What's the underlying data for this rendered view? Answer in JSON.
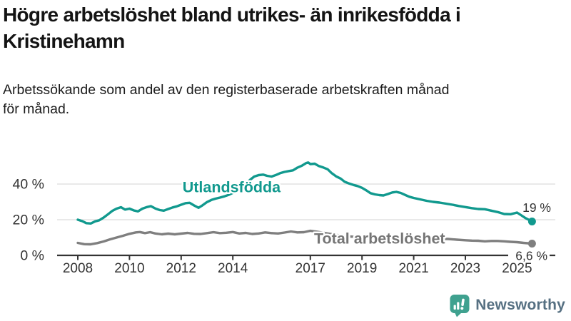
{
  "header": {
    "title_lines": [
      "Högre arbetslöshet bland utrikes- än inrikesfödda i",
      "Kristinehamn"
    ],
    "subtitle_lines": [
      "Arbetssökande som andel av den registerbaserade arbetskraften månad",
      "för månad."
    ]
  },
  "chart_data": {
    "type": "line",
    "title": "Högre arbetslöshet bland utrikes- än inrikesfödda i Kristinehamn",
    "subtitle": "Arbetssökande som andel av den registerbaserade arbetskraften månad för månad.",
    "unit": "%",
    "xlim": [
      2008,
      2025.58
    ],
    "ylim": [
      0,
      56
    ],
    "grid": "horizontal",
    "legend_position": "inline-labels",
    "x_ticks": [
      2008,
      2010,
      2012,
      2014,
      2017,
      2019,
      2021,
      2023,
      2025
    ],
    "y_ticks": [
      {
        "value": 0,
        "label": "0 %"
      },
      {
        "value": 20,
        "label": "20 %"
      },
      {
        "value": 40,
        "label": "40 %"
      }
    ],
    "axis_color": "#333333",
    "gridline_color": "#dcdcdc",
    "tick_label_color": "#333333",
    "series": [
      {
        "name": "Utlandsfödda",
        "color": "#11998e",
        "end_label": "19 %",
        "end_value": 19,
        "label_at": [
          2013.95,
          38.4
        ],
        "points": [
          [
            2008.0,
            20.0
          ],
          [
            2008.17,
            19.2
          ],
          [
            2008.33,
            18.1
          ],
          [
            2008.5,
            17.9
          ],
          [
            2008.67,
            19.1
          ],
          [
            2008.83,
            19.7
          ],
          [
            2009.0,
            21.2
          ],
          [
            2009.17,
            23.1
          ],
          [
            2009.33,
            24.9
          ],
          [
            2009.5,
            26.2
          ],
          [
            2009.67,
            27.0
          ],
          [
            2009.83,
            25.7
          ],
          [
            2010.0,
            26.2
          ],
          [
            2010.17,
            25.2
          ],
          [
            2010.33,
            24.7
          ],
          [
            2010.5,
            26.2
          ],
          [
            2010.67,
            27.1
          ],
          [
            2010.83,
            27.6
          ],
          [
            2011.0,
            26.3
          ],
          [
            2011.17,
            25.4
          ],
          [
            2011.33,
            25.1
          ],
          [
            2011.5,
            26.0
          ],
          [
            2011.67,
            26.9
          ],
          [
            2011.83,
            27.5
          ],
          [
            2012.0,
            28.4
          ],
          [
            2012.17,
            29.3
          ],
          [
            2012.33,
            29.5
          ],
          [
            2012.5,
            28.0
          ],
          [
            2012.67,
            26.7
          ],
          [
            2012.83,
            28.1
          ],
          [
            2013.0,
            29.9
          ],
          [
            2013.17,
            31.1
          ],
          [
            2013.33,
            31.8
          ],
          [
            2013.5,
            32.4
          ],
          [
            2013.67,
            33.1
          ],
          [
            2013.83,
            33.9
          ],
          [
            2014.0,
            35.1
          ],
          [
            2014.17,
            36.6
          ],
          [
            2014.33,
            38.2
          ],
          [
            2014.5,
            40.1
          ],
          [
            2014.67,
            42.4
          ],
          [
            2014.83,
            44.2
          ],
          [
            2015.0,
            45.0
          ],
          [
            2015.17,
            45.3
          ],
          [
            2015.33,
            44.6
          ],
          [
            2015.5,
            44.2
          ],
          [
            2015.67,
            45.1
          ],
          [
            2015.83,
            46.1
          ],
          [
            2016.0,
            46.8
          ],
          [
            2016.17,
            47.3
          ],
          [
            2016.33,
            47.7
          ],
          [
            2016.5,
            49.2
          ],
          [
            2016.67,
            50.3
          ],
          [
            2016.83,
            51.7
          ],
          [
            2016.92,
            52.1
          ],
          [
            2017.0,
            51.2
          ],
          [
            2017.17,
            51.4
          ],
          [
            2017.33,
            50.1
          ],
          [
            2017.5,
            49.3
          ],
          [
            2017.67,
            48.3
          ],
          [
            2017.83,
            46.1
          ],
          [
            2018.0,
            44.3
          ],
          [
            2018.17,
            43.1
          ],
          [
            2018.33,
            41.3
          ],
          [
            2018.5,
            40.3
          ],
          [
            2018.67,
            39.5
          ],
          [
            2018.83,
            38.9
          ],
          [
            2019.0,
            37.9
          ],
          [
            2019.17,
            36.4
          ],
          [
            2019.33,
            34.9
          ],
          [
            2019.5,
            34.2
          ],
          [
            2019.67,
            33.8
          ],
          [
            2019.83,
            33.6
          ],
          [
            2020.0,
            34.4
          ],
          [
            2020.17,
            35.3
          ],
          [
            2020.33,
            35.6
          ],
          [
            2020.5,
            35.0
          ],
          [
            2020.67,
            33.9
          ],
          [
            2020.83,
            32.9
          ],
          [
            2021.0,
            32.2
          ],
          [
            2021.25,
            31.4
          ],
          [
            2021.5,
            30.6
          ],
          [
            2021.75,
            30.0
          ],
          [
            2022.0,
            29.6
          ],
          [
            2022.25,
            29.0
          ],
          [
            2022.5,
            28.4
          ],
          [
            2022.75,
            27.7
          ],
          [
            2023.0,
            27.1
          ],
          [
            2023.25,
            26.5
          ],
          [
            2023.5,
            26.0
          ],
          [
            2023.75,
            25.9
          ],
          [
            2024.0,
            25.1
          ],
          [
            2024.25,
            24.3
          ],
          [
            2024.5,
            23.2
          ],
          [
            2024.75,
            23.1
          ],
          [
            2025.0,
            24.0
          ],
          [
            2025.17,
            22.4
          ],
          [
            2025.33,
            20.9
          ],
          [
            2025.58,
            19.0
          ]
        ]
      },
      {
        "name": "Total arbetslöshet",
        "color": "#7f7f7f",
        "end_label": "6,6 %",
        "end_value": 6.6,
        "label_at": [
          2019.68,
          9.6
        ],
        "points": [
          [
            2008.0,
            7.0
          ],
          [
            2008.25,
            6.3
          ],
          [
            2008.5,
            6.2
          ],
          [
            2008.75,
            6.9
          ],
          [
            2009.0,
            7.8
          ],
          [
            2009.25,
            9.0
          ],
          [
            2009.5,
            10.0
          ],
          [
            2009.75,
            11.0
          ],
          [
            2010.0,
            12.1
          ],
          [
            2010.25,
            12.9
          ],
          [
            2010.4,
            13.1
          ],
          [
            2010.6,
            12.5
          ],
          [
            2010.8,
            13.0
          ],
          [
            2011.0,
            12.3
          ],
          [
            2011.25,
            11.8
          ],
          [
            2011.5,
            12.2
          ],
          [
            2011.75,
            11.8
          ],
          [
            2012.0,
            12.2
          ],
          [
            2012.25,
            12.6
          ],
          [
            2012.5,
            12.1
          ],
          [
            2012.75,
            12.0
          ],
          [
            2013.0,
            12.5
          ],
          [
            2013.25,
            13.0
          ],
          [
            2013.5,
            12.5
          ],
          [
            2013.75,
            12.7
          ],
          [
            2014.0,
            13.1
          ],
          [
            2014.25,
            12.3
          ],
          [
            2014.5,
            12.6
          ],
          [
            2014.75,
            12.0
          ],
          [
            2015.0,
            12.3
          ],
          [
            2015.25,
            12.9
          ],
          [
            2015.5,
            12.5
          ],
          [
            2015.75,
            12.3
          ],
          [
            2016.0,
            12.8
          ],
          [
            2016.25,
            13.4
          ],
          [
            2016.5,
            12.9
          ],
          [
            2016.75,
            13.0
          ],
          [
            2017.0,
            13.8
          ],
          [
            2017.25,
            13.3
          ],
          [
            2017.5,
            12.7
          ],
          [
            2017.75,
            12.1
          ],
          [
            2018.0,
            11.5
          ],
          [
            2018.33,
            10.9
          ],
          [
            2018.67,
            10.4
          ],
          [
            2019.0,
            10.0
          ],
          [
            2019.33,
            9.6
          ],
          [
            2019.67,
            9.4
          ],
          [
            2020.0,
            9.9
          ],
          [
            2020.33,
            10.8
          ],
          [
            2020.67,
            10.6
          ],
          [
            2021.0,
            10.1
          ],
          [
            2021.33,
            9.8
          ],
          [
            2021.67,
            9.5
          ],
          [
            2022.0,
            9.3
          ],
          [
            2022.33,
            9.2
          ],
          [
            2022.67,
            8.8
          ],
          [
            2023.0,
            8.5
          ],
          [
            2023.25,
            8.3
          ],
          [
            2023.5,
            8.2
          ],
          [
            2023.75,
            7.9
          ],
          [
            2024.0,
            8.1
          ],
          [
            2024.25,
            8.1
          ],
          [
            2024.5,
            7.9
          ],
          [
            2024.75,
            7.6
          ],
          [
            2025.0,
            7.4
          ],
          [
            2025.25,
            7.0
          ],
          [
            2025.58,
            6.6
          ]
        ]
      }
    ]
  },
  "footer": {
    "brand": "Newsworthy",
    "brand_text_color": "#567082",
    "logo_color": "#3fa18f"
  }
}
